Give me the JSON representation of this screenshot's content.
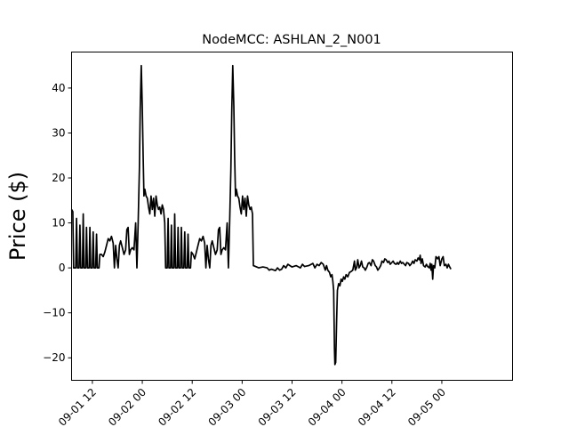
{
  "chart_data": {
    "type": "line",
    "title": "NodeMCC: ASHLAN_2_N001",
    "xlabel": "",
    "ylabel": "Price ($)",
    "xlim": [
      0,
      106
    ],
    "ylim": [
      -25,
      48
    ],
    "yticks": [
      -20,
      -10,
      0,
      10,
      20,
      30,
      40
    ],
    "xticks": [
      {
        "label": "09-01 12",
        "x": 5
      },
      {
        "label": "09-02 00",
        "x": 17
      },
      {
        "label": "09-02 12",
        "x": 29
      },
      {
        "label": "09-03 00",
        "x": 41
      },
      {
        "label": "09-03 12",
        "x": 53
      },
      {
        "label": "09-04 00",
        "x": 65
      },
      {
        "label": "09-04 12",
        "x": 77
      },
      {
        "label": "09-05 00",
        "x": 89
      }
    ],
    "series": [
      {
        "name": "NodeMCC",
        "color": "#000000",
        "points": [
          [
            0.0,
            13
          ],
          [
            0.3,
            12.5
          ],
          [
            0.5,
            0
          ],
          [
            1.0,
            0
          ],
          [
            1.2,
            11
          ],
          [
            1.4,
            0
          ],
          [
            1.8,
            0
          ],
          [
            2.0,
            9.5
          ],
          [
            2.2,
            0
          ],
          [
            2.6,
            0
          ],
          [
            2.8,
            12
          ],
          [
            3.0,
            0
          ],
          [
            3.4,
            0
          ],
          [
            3.6,
            9
          ],
          [
            3.8,
            0
          ],
          [
            4.2,
            0
          ],
          [
            4.4,
            9
          ],
          [
            4.6,
            0
          ],
          [
            5.0,
            0
          ],
          [
            5.2,
            8
          ],
          [
            5.4,
            0
          ],
          [
            5.8,
            0
          ],
          [
            6.0,
            7.5
          ],
          [
            6.2,
            0
          ],
          [
            6.6,
            0
          ],
          [
            6.8,
            3
          ],
          [
            7.2,
            3
          ],
          [
            7.6,
            2.5
          ],
          [
            8.0,
            3.5
          ],
          [
            8.4,
            5
          ],
          [
            8.8,
            6.5
          ],
          [
            9.2,
            6
          ],
          [
            9.6,
            7
          ],
          [
            10.0,
            5.5
          ],
          [
            10.3,
            0
          ],
          [
            10.6,
            5
          ],
          [
            10.9,
            2
          ],
          [
            11.2,
            0
          ],
          [
            11.5,
            5
          ],
          [
            11.8,
            6
          ],
          [
            12.2,
            4.5
          ],
          [
            12.6,
            3
          ],
          [
            13.0,
            4
          ],
          [
            13.3,
            8.5
          ],
          [
            13.6,
            9
          ],
          [
            13.9,
            3
          ],
          [
            14.2,
            4
          ],
          [
            14.6,
            4.5
          ],
          [
            15.0,
            4
          ],
          [
            15.4,
            10
          ],
          [
            15.7,
            0
          ],
          [
            16.0,
            10
          ],
          [
            16.3,
            22
          ],
          [
            16.5,
            35
          ],
          [
            16.75,
            45
          ],
          [
            17.0,
            36
          ],
          [
            17.2,
            25
          ],
          [
            17.4,
            16
          ],
          [
            17.6,
            17.5
          ],
          [
            17.9,
            16
          ],
          [
            18.2,
            15.5
          ],
          [
            18.5,
            13.5
          ],
          [
            18.8,
            12
          ],
          [
            19.1,
            16
          ],
          [
            19.4,
            13
          ],
          [
            19.7,
            15.5
          ],
          [
            20.0,
            11.5
          ],
          [
            20.3,
            16
          ],
          [
            20.6,
            14
          ],
          [
            20.9,
            13
          ],
          [
            21.2,
            13.5
          ],
          [
            21.5,
            12
          ],
          [
            21.8,
            14
          ],
          [
            22.1,
            13
          ],
          [
            22.4,
            10
          ],
          [
            22.6,
            0
          ],
          [
            23.0,
            0
          ],
          [
            23.2,
            11
          ],
          [
            23.4,
            0
          ],
          [
            23.8,
            0
          ],
          [
            24.0,
            9.5
          ],
          [
            24.2,
            0
          ],
          [
            24.6,
            0
          ],
          [
            24.8,
            12
          ],
          [
            25.0,
            0
          ],
          [
            25.4,
            0
          ],
          [
            25.6,
            9
          ],
          [
            25.8,
            0
          ],
          [
            26.2,
            0
          ],
          [
            26.4,
            9
          ],
          [
            26.6,
            0
          ],
          [
            27.0,
            0
          ],
          [
            27.2,
            8
          ],
          [
            27.4,
            0
          ],
          [
            27.8,
            0
          ],
          [
            28.0,
            7.5
          ],
          [
            28.2,
            0
          ],
          [
            28.6,
            0
          ],
          [
            28.8,
            3.5
          ],
          [
            29.2,
            3
          ],
          [
            29.6,
            2
          ],
          [
            30.0,
            3.5
          ],
          [
            30.4,
            5
          ],
          [
            30.8,
            6.5
          ],
          [
            31.2,
            6
          ],
          [
            31.6,
            7
          ],
          [
            32.0,
            5.5
          ],
          [
            32.3,
            0
          ],
          [
            32.6,
            5
          ],
          [
            32.9,
            2
          ],
          [
            33.2,
            0
          ],
          [
            33.5,
            5
          ],
          [
            33.8,
            6
          ],
          [
            34.2,
            4.5
          ],
          [
            34.6,
            3
          ],
          [
            35.0,
            4
          ],
          [
            35.3,
            8.5
          ],
          [
            35.6,
            9
          ],
          [
            35.9,
            3
          ],
          [
            36.2,
            4
          ],
          [
            36.6,
            4.5
          ],
          [
            37.0,
            4
          ],
          [
            37.4,
            10
          ],
          [
            37.7,
            0
          ],
          [
            38.0,
            10
          ],
          [
            38.3,
            22
          ],
          [
            38.5,
            35
          ],
          [
            38.75,
            45
          ],
          [
            39.0,
            36
          ],
          [
            39.2,
            25
          ],
          [
            39.4,
            16
          ],
          [
            39.6,
            17.5
          ],
          [
            39.9,
            16
          ],
          [
            40.2,
            15.5
          ],
          [
            40.5,
            13.5
          ],
          [
            40.8,
            12
          ],
          [
            41.1,
            16
          ],
          [
            41.4,
            13
          ],
          [
            41.7,
            15.5
          ],
          [
            42.0,
            11.5
          ],
          [
            42.3,
            16
          ],
          [
            42.6,
            14
          ],
          [
            42.9,
            13
          ],
          [
            43.2,
            13.5
          ],
          [
            43.5,
            12
          ],
          [
            43.7,
            0.5
          ],
          [
            44.5,
            0.2
          ],
          [
            45.0,
            0
          ],
          [
            46.0,
            0.2
          ],
          [
            47.0,
            0
          ],
          [
            47.5,
            -0.5
          ],
          [
            48.0,
            -0.3
          ],
          [
            49.0,
            -0.6
          ],
          [
            49.5,
            0
          ],
          [
            50.0,
            -0.5
          ],
          [
            50.5,
            -0.3
          ],
          [
            51.0,
            0.5
          ],
          [
            51.5,
            0
          ],
          [
            52.0,
            0.8
          ],
          [
            53.0,
            0.2
          ],
          [
            54.0,
            0.5
          ],
          [
            55.0,
            0
          ],
          [
            55.5,
            0.8
          ],
          [
            56.0,
            0.3
          ],
          [
            57.0,
            0.5
          ],
          [
            58.0,
            1
          ],
          [
            58.5,
            0
          ],
          [
            59.0,
            0.8
          ],
          [
            59.5,
            0.5
          ],
          [
            60.0,
            1.2
          ],
          [
            60.5,
            0.8
          ],
          [
            61.0,
            -0.5
          ],
          [
            61.3,
            0.5
          ],
          [
            61.6,
            -0.5
          ],
          [
            62.0,
            -1
          ],
          [
            62.3,
            -2
          ],
          [
            62.6,
            -1.5
          ],
          [
            62.8,
            -3
          ],
          [
            63.0,
            -5
          ],
          [
            63.1,
            -12
          ],
          [
            63.2,
            -18
          ],
          [
            63.3,
            -21.5
          ],
          [
            63.5,
            -21
          ],
          [
            63.7,
            -12
          ],
          [
            63.9,
            -5
          ],
          [
            64.2,
            -3.5
          ],
          [
            64.5,
            -4
          ],
          [
            64.8,
            -2.5
          ],
          [
            65.1,
            -3
          ],
          [
            65.4,
            -2
          ],
          [
            65.7,
            -2.5
          ],
          [
            66.0,
            -1.5
          ],
          [
            66.4,
            -2
          ],
          [
            66.8,
            -1
          ],
          [
            67.2,
            -0.8
          ],
          [
            67.6,
            -0.5
          ],
          [
            68.0,
            1.5
          ],
          [
            68.2,
            -0.5
          ],
          [
            68.5,
            0
          ],
          [
            68.8,
            1.8
          ],
          [
            69.1,
            0
          ],
          [
            69.4,
            0.5
          ],
          [
            69.7,
            1.5
          ],
          [
            70.0,
            0.2
          ],
          [
            70.3,
            0
          ],
          [
            70.6,
            -0.5
          ],
          [
            71.0,
            0.2
          ],
          [
            71.3,
            1
          ],
          [
            71.6,
            1.2
          ],
          [
            72.0,
            0.5
          ],
          [
            72.3,
            1.8
          ],
          [
            72.6,
            1.5
          ],
          [
            73.0,
            0.5
          ],
          [
            73.3,
            0.2
          ],
          [
            73.6,
            -0.5
          ],
          [
            74.0,
            0
          ],
          [
            74.3,
            0.5
          ],
          [
            74.6,
            1.5
          ],
          [
            75.0,
            1.2
          ],
          [
            75.3,
            2
          ],
          [
            75.6,
            1.8
          ],
          [
            76.0,
            1.2
          ],
          [
            76.3,
            1.5
          ],
          [
            76.6,
            0.8
          ],
          [
            77.0,
            1.2
          ],
          [
            77.3,
            1.5
          ],
          [
            77.6,
            1
          ],
          [
            78.0,
            0.8
          ],
          [
            78.3,
            1.2
          ],
          [
            78.6,
            0.8
          ],
          [
            79.0,
            1.5
          ],
          [
            79.3,
            1
          ],
          [
            79.6,
            1.2
          ],
          [
            80.0,
            0.8
          ],
          [
            80.3,
            0.5
          ],
          [
            80.6,
            1.2
          ],
          [
            81.0,
            1
          ],
          [
            81.3,
            0.5
          ],
          [
            81.6,
            0.8
          ],
          [
            82.0,
            1.5
          ],
          [
            82.3,
            1
          ],
          [
            82.6,
            1.8
          ],
          [
            83.0,
            1.5
          ],
          [
            83.3,
            2.2
          ],
          [
            83.6,
            1.8
          ],
          [
            83.8,
            2.8
          ],
          [
            84.0,
            1
          ],
          [
            84.3,
            2
          ],
          [
            84.6,
            0.5
          ],
          [
            85.0,
            0.2
          ],
          [
            85.3,
            0.8
          ],
          [
            85.6,
            0.3
          ],
          [
            86.0,
            0
          ],
          [
            86.2,
            1
          ],
          [
            86.4,
            -0.5
          ],
          [
            86.6,
            0.8
          ],
          [
            86.8,
            -2.5
          ],
          [
            87.0,
            0.5
          ],
          [
            87.3,
            0
          ],
          [
            87.6,
            2.5
          ],
          [
            88.0,
            2
          ],
          [
            88.3,
            2.5
          ],
          [
            88.6,
            0.5
          ],
          [
            89.0,
            2
          ],
          [
            89.3,
            2.5
          ],
          [
            89.6,
            0.5
          ],
          [
            90.0,
            0.8
          ],
          [
            90.3,
            0
          ],
          [
            90.6,
            0.8
          ],
          [
            90.9,
            0.2
          ],
          [
            91.2,
            -0.3
          ]
        ]
      }
    ]
  }
}
